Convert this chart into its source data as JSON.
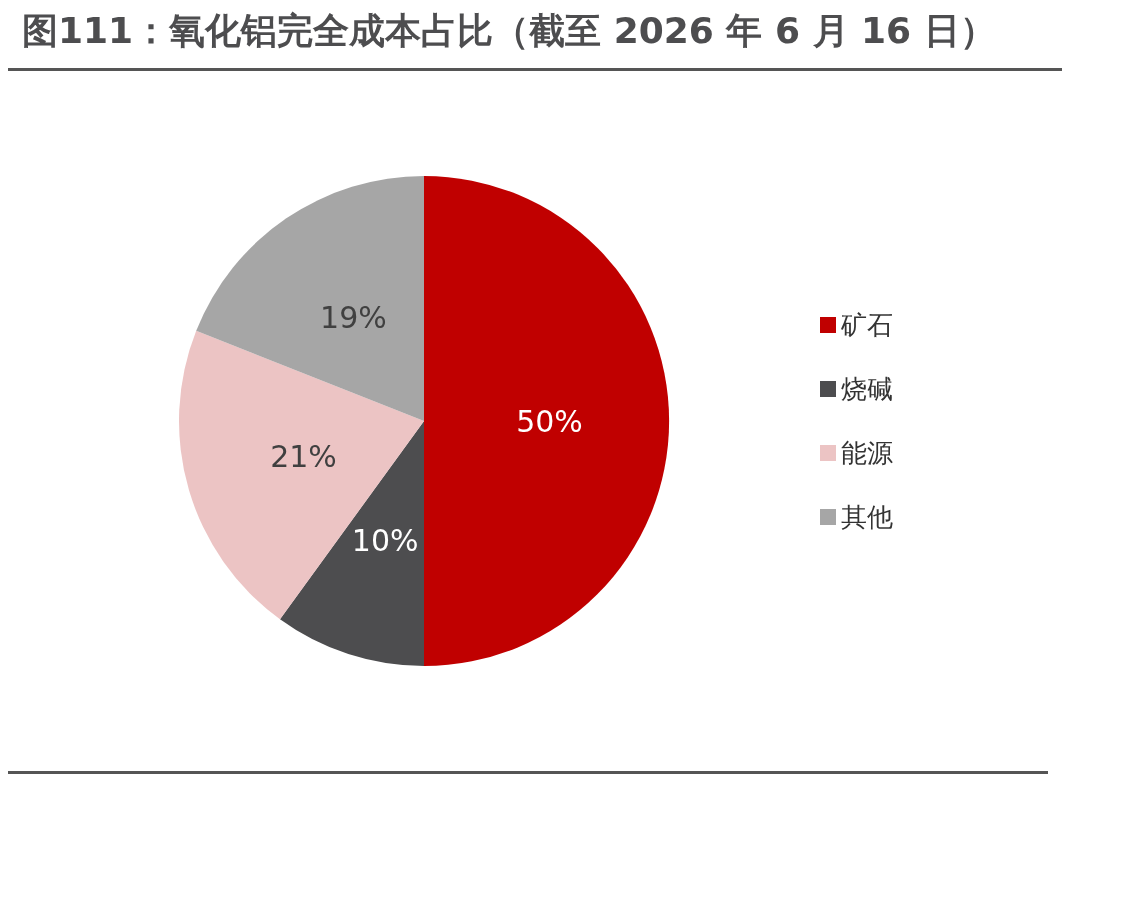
{
  "chart_data": {
    "type": "pie",
    "title": "图111：氧化铝完全成本占比（截至 2026 年 6 月 16 日）",
    "categories": [
      "矿石",
      "烧碱",
      "能源",
      "其他"
    ],
    "values": [
      50,
      10,
      21,
      19
    ],
    "colors": [
      "#c00000",
      "#4d4d4f",
      "#ecc4c4",
      "#a6a6a6"
    ],
    "value_labels": [
      "50%",
      "10%",
      "21%",
      "19%"
    ],
    "legend": "right"
  }
}
